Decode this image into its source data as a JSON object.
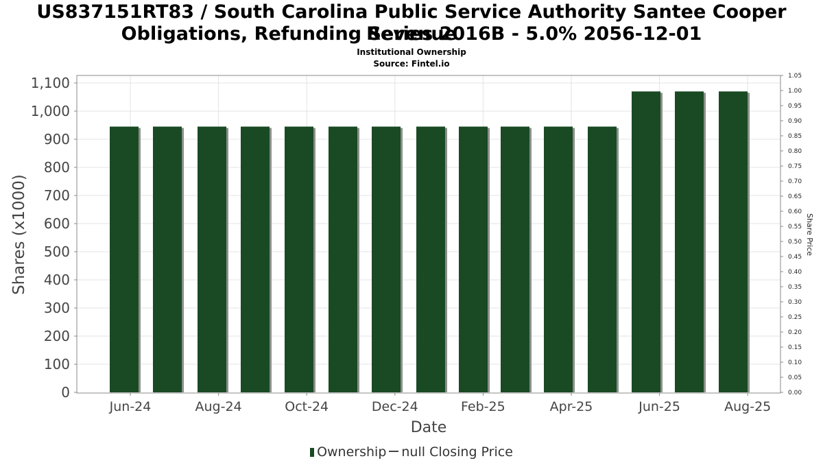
{
  "title_line1": "US837151RT83 / South Carolina Public Service Authority Santee Cooper Revenue",
  "title_line2": "Obligations, Refunding Series 2016B - 5.0% 2056-12-01",
  "subtitle": "Institutional Ownership",
  "source": "Source: Fintel.io",
  "legend": {
    "ownership": "Ownership",
    "price": "null Closing Price"
  },
  "colors": {
    "bar": "#1a4a24",
    "bar_shadow": "#8a8f8a",
    "grid": "#e3e3e3",
    "axis": "#888888"
  },
  "chart_data": {
    "type": "bar",
    "xlabel": "Date",
    "ylabel": "Shares (x1000)",
    "y2label": "Share Price",
    "ylim": [
      0,
      1120
    ],
    "y2lim": [
      0,
      1.05
    ],
    "yticks": [
      "0",
      "100",
      "200",
      "300",
      "400",
      "500",
      "600",
      "700",
      "800",
      "900",
      "1,000",
      "1,100"
    ],
    "y2ticks": [
      "0.00",
      "0.05",
      "0.10",
      "0.15",
      "0.20",
      "0.25",
      "0.30",
      "0.35",
      "0.40",
      "0.45",
      "0.50",
      "0.55",
      "0.60",
      "0.65",
      "0.70",
      "0.75",
      "0.80",
      "0.85",
      "0.90",
      "0.95",
      "1.00",
      "1.05"
    ],
    "xticks": [
      "Jun-24",
      "Aug-24",
      "Oct-24",
      "Dec-24",
      "Feb-25",
      "Apr-25",
      "Jun-25",
      "Aug-25"
    ],
    "grid": true,
    "legend_position": "bottom",
    "series": [
      {
        "name": "Ownership",
        "values": [
          945,
          945,
          945,
          945,
          945,
          945,
          945,
          945,
          945,
          945,
          945,
          945,
          1070,
          1070,
          1070
        ]
      }
    ]
  }
}
